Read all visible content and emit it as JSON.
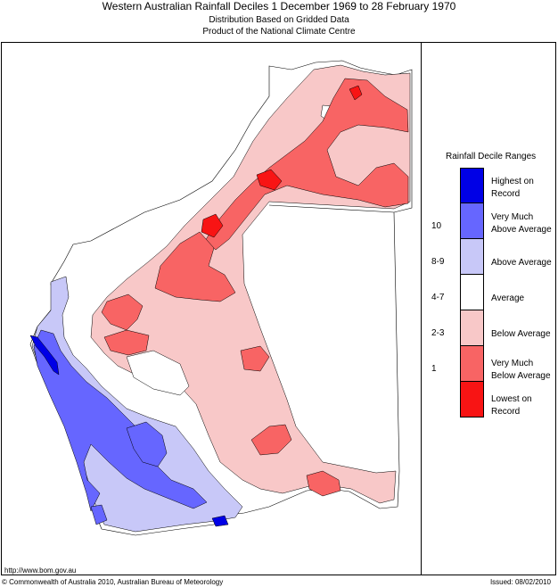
{
  "header": {
    "title": "Western Australian Rainfall Deciles     1 December 1969 to 28 February 1970",
    "subtitle_1": "Distribution Based on Gridded Data",
    "subtitle_2": "Product of the National Climate Centre"
  },
  "legend": {
    "title": "Rainfall Decile Ranges",
    "items": [
      {
        "label_1": "Highest on",
        "label_2": "Record",
        "range": "",
        "color": "#0000e6"
      },
      {
        "label_1": "Very Much",
        "label_2": "Above Average",
        "range": "10",
        "color": "#6666ff"
      },
      {
        "label_1": "Above Average",
        "label_2": "",
        "range": "8-9",
        "color": "#c8c8f8"
      },
      {
        "label_1": "Average",
        "label_2": "",
        "range": "4-7",
        "color": "#ffffff"
      },
      {
        "label_1": "Below Average",
        "label_2": "",
        "range": "2-3",
        "color": "#f8c8c8"
      },
      {
        "label_1": "Very Much",
        "label_2": "Below Average",
        "range": "1",
        "color": "#f86464"
      },
      {
        "label_1": "Lowest on",
        "label_2": "Record",
        "range": "",
        "color": "#f81414"
      }
    ]
  },
  "footer": {
    "url": "http://www.bom.gov.au",
    "copyright": "© Commonwealth of Australia 2010, Australian Bureau of Meteorology",
    "issued": "Issued: 08/02/2010"
  }
}
